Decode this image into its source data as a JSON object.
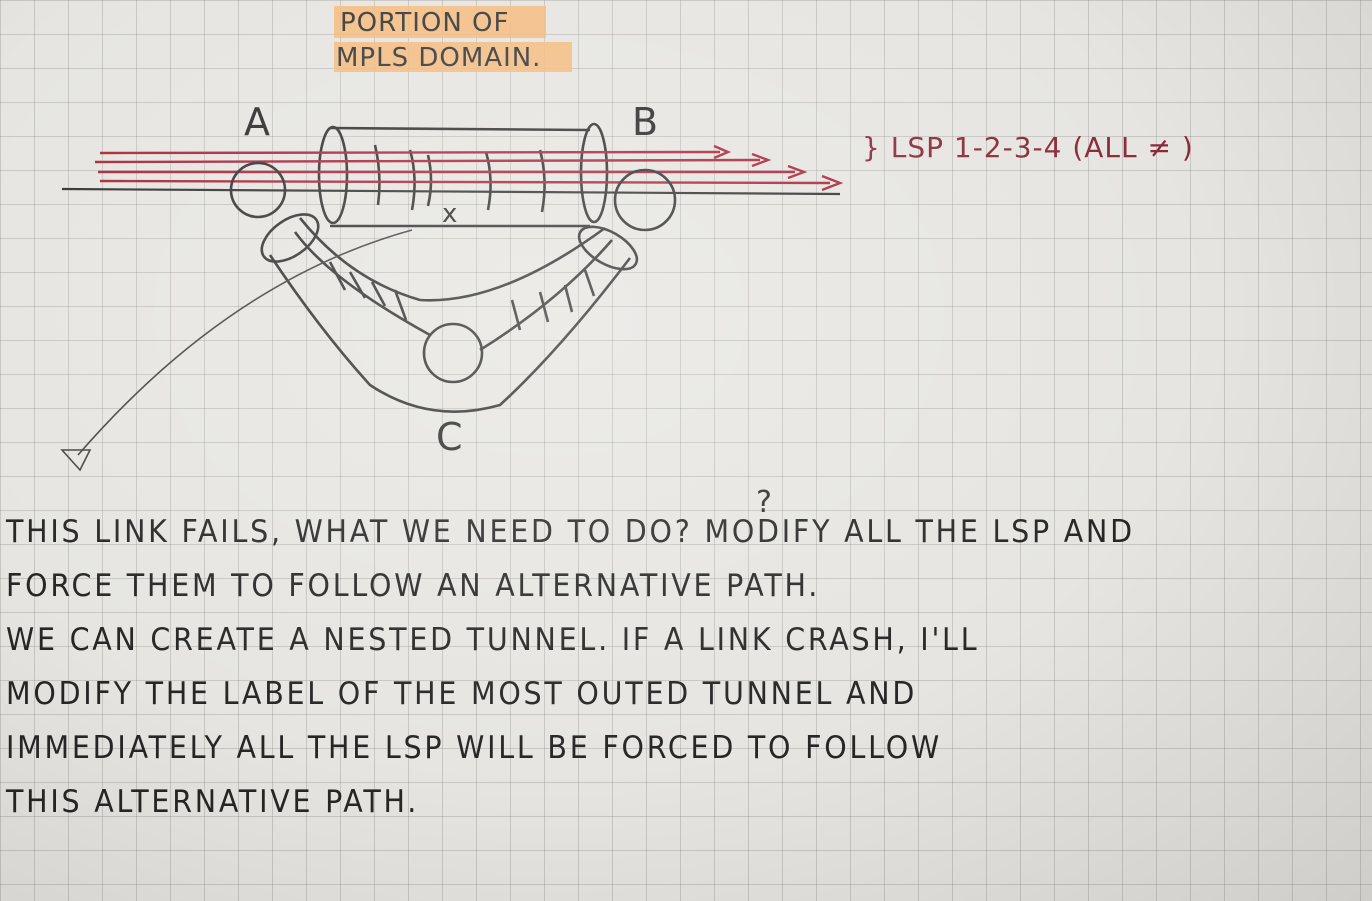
{
  "title": {
    "line1": "PORTION OF",
    "line2": "MPLS DOMAIN."
  },
  "nodes": {
    "a": "A",
    "b": "B",
    "c": "C"
  },
  "failure_mark": "x",
  "lsp_label": "} LSP 1-2-3-4 (ALL ≠ )",
  "question_mark": "?",
  "note_lines": [
    "THIS LINK FAILS, WHAT WE NEED TO DO? MODIFY ALL THE LSP AND",
    "FORCE THEM TO FOLLOW AN ALTERNATIVE PATH.",
    "WE CAN CREATE A NESTED TUNNEL. IF A LINK CRASH, I'LL",
    "MODIFY THE LABEL OF THE MOST OUTED TUNNEL AND",
    "IMMEDIATELY ALL THE LSP WILL BE FORCED TO FOLLOW",
    "THIS ALTERNATIVE PATH."
  ],
  "colors": {
    "highlight": "#f6b97a",
    "lsp_red": "#a8283c",
    "pencil": "#2b2b2b"
  }
}
